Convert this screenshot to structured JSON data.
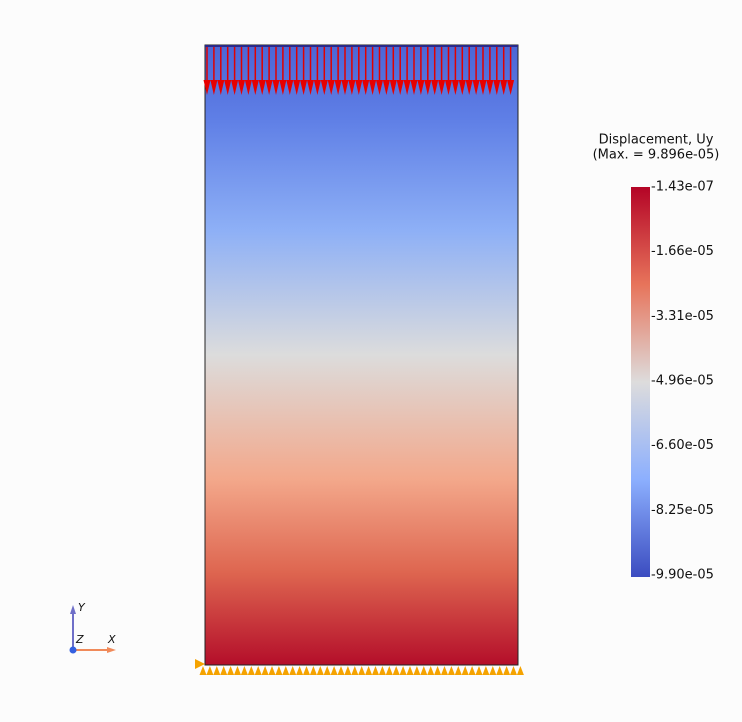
{
  "legend": {
    "title": "Displacement, Uy",
    "subtitle": "(Max. = 9.896e-05)",
    "labels": [
      "-1.43e-07",
      "-1.66e-05",
      "-3.31e-05",
      "-4.96e-05",
      "-6.60e-05",
      "-8.25e-05",
      "-9.90e-05"
    ]
  },
  "axes": {
    "y": "Y",
    "z": "Z",
    "x": "X"
  }
}
